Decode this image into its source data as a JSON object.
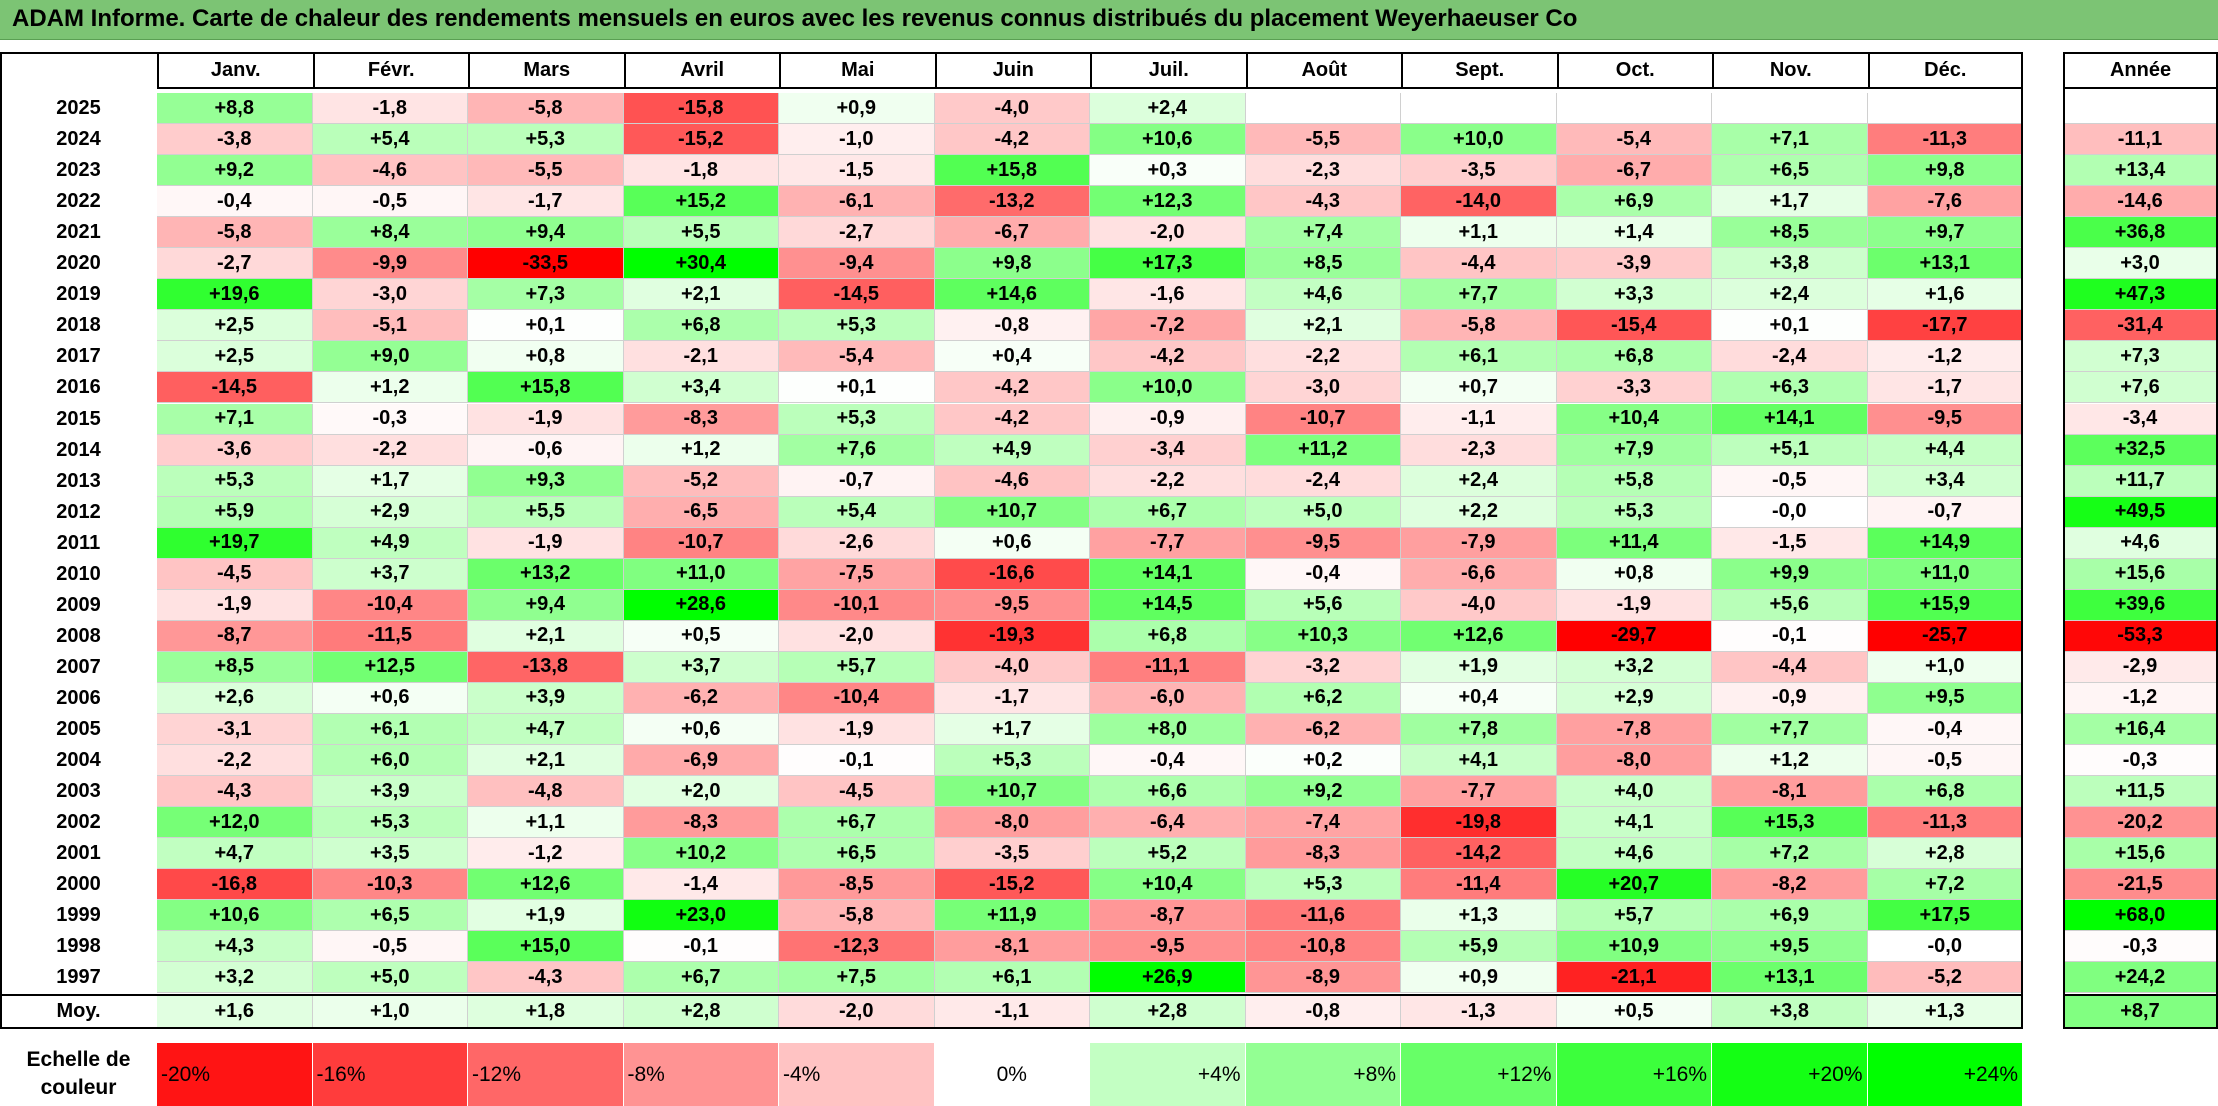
{
  "title": "ADAM Informe. Carte de chaleur des rendements mensuels en euros avec les revenus connus distribués du placement Weyerhaeuser Co",
  "chart_data": {
    "type": "heatmap",
    "title": "ADAM Informe. Carte de chaleur des rendements mensuels en euros avec les revenus connus distribués du placement Weyerhaeuser Co",
    "columns": [
      "Janv.",
      "Févr.",
      "Mars",
      "Avril",
      "Mai",
      "Juin",
      "Juil.",
      "Août",
      "Sept.",
      "Oct.",
      "Nov.",
      "Déc."
    ],
    "year_header": "Année",
    "rows": [
      {
        "year": "2025",
        "values": [
          "+8,8",
          "-1,8",
          "-5,8",
          "-15,8",
          "+0,9",
          "-4,0",
          "+2,4",
          "",
          "",
          "",
          "",
          ""
        ],
        "annual": ""
      },
      {
        "year": "2024",
        "values": [
          "-3,8",
          "+5,4",
          "+5,3",
          "-15,2",
          "-1,0",
          "-4,2",
          "+10,6",
          "-5,5",
          "+10,0",
          "-5,4",
          "+7,1",
          "-11,3"
        ],
        "annual": "-11,1"
      },
      {
        "year": "2023",
        "values": [
          "+9,2",
          "-4,6",
          "-5,5",
          "-1,8",
          "-1,5",
          "+15,8",
          "+0,3",
          "-2,3",
          "-3,5",
          "-6,7",
          "+6,5",
          "+9,8"
        ],
        "annual": "+13,4"
      },
      {
        "year": "2022",
        "values": [
          "-0,4",
          "-0,5",
          "-1,7",
          "+15,2",
          "-6,1",
          "-13,2",
          "+12,3",
          "-4,3",
          "-14,0",
          "+6,9",
          "+1,7",
          "-7,6"
        ],
        "annual": "-14,6"
      },
      {
        "year": "2021",
        "values": [
          "-5,8",
          "+8,4",
          "+9,4",
          "+5,5",
          "-2,7",
          "-6,7",
          "-2,0",
          "+7,4",
          "+1,1",
          "+1,4",
          "+8,5",
          "+9,7"
        ],
        "annual": "+36,8"
      },
      {
        "year": "2020",
        "values": [
          "-2,7",
          "-9,9",
          "-33,5",
          "+30,4",
          "-9,4",
          "+9,8",
          "+17,3",
          "+8,5",
          "-4,4",
          "-3,9",
          "+3,8",
          "+13,1"
        ],
        "annual": "+3,0"
      },
      {
        "year": "2019",
        "values": [
          "+19,6",
          "-3,0",
          "+7,3",
          "+2,1",
          "-14,5",
          "+14,6",
          "-1,6",
          "+4,6",
          "+7,7",
          "+3,3",
          "+2,4",
          "+1,6"
        ],
        "annual": "+47,3"
      },
      {
        "year": "2018",
        "values": [
          "+2,5",
          "-5,1",
          "+0,1",
          "+6,8",
          "+5,3",
          "-0,8",
          "-7,2",
          "+2,1",
          "-5,8",
          "-15,4",
          "+0,1",
          "-17,7"
        ],
        "annual": "-31,4"
      },
      {
        "year": "2017",
        "values": [
          "+2,5",
          "+9,0",
          "+0,8",
          "-2,1",
          "-5,4",
          "+0,4",
          "-4,2",
          "-2,2",
          "+6,1",
          "+6,8",
          "-2,4",
          "-1,2"
        ],
        "annual": "+7,3"
      },
      {
        "year": "2016",
        "values": [
          "-14,5",
          "+1,2",
          "+15,8",
          "+3,4",
          "+0,1",
          "-4,2",
          "+10,0",
          "-3,0",
          "+0,7",
          "-3,3",
          "+6,3",
          "-1,7"
        ],
        "annual": "+7,6"
      },
      {
        "year": "2015",
        "values": [
          "+7,1",
          "-0,3",
          "-1,9",
          "-8,3",
          "+5,3",
          "-4,2",
          "-0,9",
          "-10,7",
          "-1,1",
          "+10,4",
          "+14,1",
          "-9,5"
        ],
        "annual": "-3,4"
      },
      {
        "year": "2014",
        "values": [
          "-3,6",
          "-2,2",
          "-0,6",
          "+1,2",
          "+7,6",
          "+4,9",
          "-3,4",
          "+11,2",
          "-2,3",
          "+7,9",
          "+5,1",
          "+4,4"
        ],
        "annual": "+32,5"
      },
      {
        "year": "2013",
        "values": [
          "+5,3",
          "+1,7",
          "+9,3",
          "-5,2",
          "-0,7",
          "-4,6",
          "-2,2",
          "-2,4",
          "+2,4",
          "+5,8",
          "-0,5",
          "+3,4"
        ],
        "annual": "+11,7"
      },
      {
        "year": "2012",
        "values": [
          "+5,9",
          "+2,9",
          "+5,5",
          "-6,5",
          "+5,4",
          "+10,7",
          "+6,7",
          "+5,0",
          "+2,2",
          "+5,3",
          "-0,0",
          "-0,7"
        ],
        "annual": "+49,5"
      },
      {
        "year": "2011",
        "values": [
          "+19,7",
          "+4,9",
          "-1,9",
          "-10,7",
          "-2,6",
          "+0,6",
          "-7,7",
          "-9,5",
          "-7,9",
          "+11,4",
          "-1,5",
          "+14,9"
        ],
        "annual": "+4,6"
      },
      {
        "year": "2010",
        "values": [
          "-4,5",
          "+3,7",
          "+13,2",
          "+11,0",
          "-7,5",
          "-16,6",
          "+14,1",
          "-0,4",
          "-6,6",
          "+0,8",
          "+9,9",
          "+11,0"
        ],
        "annual": "+15,6"
      },
      {
        "year": "2009",
        "values": [
          "-1,9",
          "-10,4",
          "+9,4",
          "+28,6",
          "-10,1",
          "-9,5",
          "+14,5",
          "+5,6",
          "-4,0",
          "-1,9",
          "+5,6",
          "+15,9"
        ],
        "annual": "+39,6"
      },
      {
        "year": "2008",
        "values": [
          "-8,7",
          "-11,5",
          "+2,1",
          "+0,5",
          "-2,0",
          "-19,3",
          "+6,8",
          "+10,3",
          "+12,6",
          "-29,7",
          "-0,1",
          "-25,7"
        ],
        "annual": "-53,3"
      },
      {
        "year": "2007",
        "values": [
          "+8,5",
          "+12,5",
          "-13,8",
          "+3,7",
          "+5,7",
          "-4,0",
          "-11,1",
          "-3,2",
          "+1,9",
          "+3,2",
          "-4,4",
          "+1,0"
        ],
        "annual": "-2,9"
      },
      {
        "year": "2006",
        "values": [
          "+2,6",
          "+0,6",
          "+3,9",
          "-6,2",
          "-10,4",
          "-1,7",
          "-6,0",
          "+6,2",
          "+0,4",
          "+2,9",
          "-0,9",
          "+9,5"
        ],
        "annual": "-1,2"
      },
      {
        "year": "2005",
        "values": [
          "-3,1",
          "+6,1",
          "+4,7",
          "+0,6",
          "-1,9",
          "+1,7",
          "+8,0",
          "-6,2",
          "+7,8",
          "-7,8",
          "+7,7",
          "-0,4"
        ],
        "annual": "+16,4"
      },
      {
        "year": "2004",
        "values": [
          "-2,2",
          "+6,0",
          "+2,1",
          "-6,9",
          "-0,1",
          "+5,3",
          "-0,4",
          "+0,2",
          "+4,1",
          "-8,0",
          "+1,2",
          "-0,5"
        ],
        "annual": "-0,3"
      },
      {
        "year": "2003",
        "values": [
          "-4,3",
          "+3,9",
          "-4,8",
          "+2,0",
          "-4,5",
          "+10,7",
          "+6,6",
          "+9,2",
          "-7,7",
          "+4,0",
          "-8,1",
          "+6,8"
        ],
        "annual": "+11,5"
      },
      {
        "year": "2002",
        "values": [
          "+12,0",
          "+5,3",
          "+1,1",
          "-8,3",
          "+6,7",
          "-8,0",
          "-6,4",
          "-7,4",
          "-19,8",
          "+4,1",
          "+15,3",
          "-11,3"
        ],
        "annual": "-20,2"
      },
      {
        "year": "2001",
        "values": [
          "+4,7",
          "+3,5",
          "-1,2",
          "+10,2",
          "+6,5",
          "-3,5",
          "+5,2",
          "-8,3",
          "-14,2",
          "+4,6",
          "+7,2",
          "+2,8"
        ],
        "annual": "+15,6"
      },
      {
        "year": "2000",
        "values": [
          "-16,8",
          "-10,3",
          "+12,6",
          "-1,4",
          "-8,5",
          "-15,2",
          "+10,4",
          "+5,3",
          "-11,4",
          "+20,7",
          "-8,2",
          "+7,2"
        ],
        "annual": "-21,5"
      },
      {
        "year": "1999",
        "values": [
          "+10,6",
          "+6,5",
          "+1,9",
          "+23,0",
          "-5,8",
          "+11,9",
          "-8,7",
          "-11,6",
          "+1,3",
          "+5,7",
          "+6,9",
          "+17,5"
        ],
        "annual": "+68,0"
      },
      {
        "year": "1998",
        "values": [
          "+4,3",
          "-0,5",
          "+15,0",
          "-0,1",
          "-12,3",
          "-8,1",
          "-9,5",
          "-10,8",
          "+5,9",
          "+10,9",
          "+9,5",
          "-0,0"
        ],
        "annual": "-0,3"
      },
      {
        "year": "1997",
        "values": [
          "+3,2",
          "+5,0",
          "-4,3",
          "+6,7",
          "+7,5",
          "+6,1",
          "+26,9",
          "-8,9",
          "+0,9",
          "-21,1",
          "+13,1",
          "-5,2"
        ],
        "annual": "+24,2"
      }
    ],
    "average": {
      "label": "Moy.",
      "values": [
        "+1,6",
        "+1,0",
        "+1,8",
        "+2,8",
        "-2,0",
        "-1,1",
        "+2,8",
        "-0,8",
        "-1,3",
        "+0,5",
        "+3,8",
        "+1,3"
      ],
      "annual": "+8,7"
    },
    "legend": {
      "title_line1": "Echelle de",
      "title_line2": "couleur",
      "items": [
        "-20%",
        "-16%",
        "-12%",
        "-8%",
        "-4%",
        "0%",
        "+4%",
        "+8%",
        "+12%",
        "+16%",
        "+20%",
        "+24%"
      ],
      "values": [
        -20,
        -16,
        -12,
        -8,
        -4,
        0,
        4,
        8,
        12,
        16,
        20,
        24
      ]
    },
    "colors": {
      "negative_max": "#ff0000",
      "neutral": "#ffffff",
      "positive_max": "#00ff00",
      "title_bar": "#7cc474"
    }
  }
}
